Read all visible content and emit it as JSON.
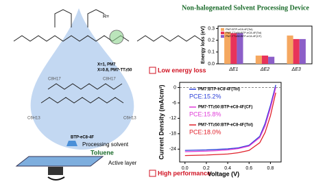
{
  "title": "Non-halogenated Solvent Processing Device",
  "structure_labels": {
    "r_group": "R=",
    "polymer_pm7": "X=1, PM7",
    "polymer_ttz": "X=0.8, PM7-TTz50",
    "acceptor": "BTP-eC8-4F",
    "side_chains": [
      "C8H17",
      "C8H17",
      "C6H13",
      "C6H13"
    ]
  },
  "process": {
    "solvent_label": "Processing solvent",
    "solvent": "Toluene",
    "layer": "Active layer"
  },
  "highlights": [
    "Low energy loss",
    "High performance"
  ],
  "chart_data": [
    {
      "type": "bar",
      "ylabel": "Energy loss (eV)",
      "categories": [
        "ΔE1",
        "ΔE2",
        "ΔE3"
      ],
      "ylim": [
        0,
        0.32
      ],
      "yticks": [
        {
          "value": 0,
          "label": "0.0"
        },
        0.1,
        0.2,
        0.3
      ],
      "series": [
        {
          "name": "PM7:BTP-eC8-4F(Tol)",
          "color": "#f5a860",
          "values": [
            0.27,
            0.07,
            0.24
          ]
        },
        {
          "name": "PM7-TTz50:BTP-eC8-4F(Tol)",
          "color": "#e8335a",
          "values": [
            0.26,
            0.07,
            0.21
          ]
        },
        {
          "name": "PM7-TTz50:BTP-eC8-4F(CF)",
          "color": "#8c5fc8",
          "values": [
            0.26,
            0.06,
            0.21
          ]
        }
      ]
    },
    {
      "type": "line",
      "xlabel": "Voltage (V)",
      "ylabel": "Current Density (mA/cm²)",
      "x": [
        0,
        0.1,
        0.2,
        0.3,
        0.4,
        0.5,
        0.6,
        0.7,
        0.75,
        0.8,
        0.85
      ],
      "xlim": [
        -0.05,
        0.9
      ],
      "xticks": [
        {
          "value": 0,
          "label": "0.0"
        },
        0.2,
        0.4,
        0.6,
        0.8
      ],
      "ylim": [
        -29,
        2
      ],
      "yticks": [
        0,
        -6,
        -12,
        -18,
        -24
      ],
      "series": [
        {
          "name": "PM7:BTP-eC8-4F(Tol)",
          "color": "#2b3fd8",
          "values": [
            -24.5,
            -24.4,
            -24.3,
            -24.1,
            -23.9,
            -23.5,
            -22.5,
            -19,
            -14,
            -7,
            1
          ]
        },
        {
          "name": "PM7-TTz50:BTP-eC8-4F(CF)",
          "color": "#e03ad8",
          "values": [
            -25,
            -24.9,
            -24.8,
            -24.6,
            -24.3,
            -23.8,
            -22.8,
            -19.5,
            -15,
            -8,
            0
          ]
        },
        {
          "name": "PM7-TTz50:BTP-eC8-4F(Tol)",
          "color": "#e0202a",
          "values": [
            -26.5,
            -26.4,
            -26.3,
            -26.1,
            -25.9,
            -25.4,
            -24.5,
            -21.5,
            -17.5,
            -11,
            -2
          ]
        }
      ],
      "annotations": [
        "PCE:15.2%",
        "PCE:15.8%",
        "PCE:18.0%"
      ]
    }
  ]
}
